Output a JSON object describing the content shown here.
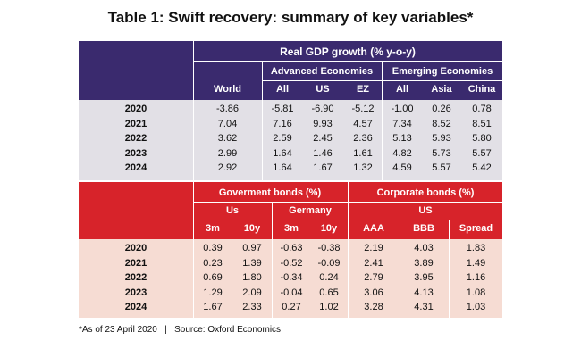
{
  "title": "Table 1: Swift recovery: summary of key variables*",
  "gdp": {
    "header": "Real GDP growth (% y-o-y)",
    "group_advanced": "Advanced Economies",
    "group_emerging": "Emerging Economies",
    "columns": [
      "World",
      "All",
      "US",
      "EZ",
      "All",
      "Asia",
      "China"
    ],
    "rows": [
      {
        "year": "2020",
        "values": [
          "-3.86",
          "-5.81",
          "-6.90",
          "-5.12",
          "-1.00",
          "0.26",
          "0.78"
        ]
      },
      {
        "year": "2021",
        "values": [
          "7.04",
          "7.16",
          "9.93",
          "4.57",
          "7.34",
          "8.52",
          "8.51"
        ]
      },
      {
        "year": "2022",
        "values": [
          "3.62",
          "2.59",
          "2.45",
          "2.36",
          "5.13",
          "5.93",
          "5.80"
        ]
      },
      {
        "year": "2023",
        "values": [
          "2.99",
          "1.64",
          "1.46",
          "1.61",
          "4.82",
          "5.73",
          "5.57"
        ]
      },
      {
        "year": "2024",
        "values": [
          "2.92",
          "1.64",
          "1.67",
          "1.32",
          "4.59",
          "5.57",
          "5.42"
        ]
      }
    ]
  },
  "bonds": {
    "header_gov": "Goverment bonds (%)",
    "header_corp": "Corporate bonds (%)",
    "group_us": "Us",
    "group_germany": "Germany",
    "group_corp_us": "US",
    "columns": [
      "3m",
      "10y",
      "3m",
      "10y",
      "AAA",
      "BBB",
      "Spread"
    ],
    "rows": [
      {
        "year": "2020",
        "values": [
          "0.39",
          "0.97",
          "-0.63",
          "-0.38",
          "2.19",
          "4.03",
          "1.83"
        ]
      },
      {
        "year": "2021",
        "values": [
          "0.23",
          "1.39",
          "-0.52",
          "-0.09",
          "2.41",
          "3.89",
          "1.49"
        ]
      },
      {
        "year": "2022",
        "values": [
          "0.69",
          "1.80",
          "-0.34",
          "0.24",
          "2.79",
          "3.95",
          "1.16"
        ]
      },
      {
        "year": "2023",
        "values": [
          "1.29",
          "2.09",
          "-0.04",
          "0.65",
          "3.06",
          "4.13",
          "1.08"
        ]
      },
      {
        "year": "2024",
        "values": [
          "1.67",
          "2.33",
          "0.27",
          "1.02",
          "3.28",
          "4.31",
          "1.03"
        ]
      }
    ]
  },
  "footnote": "*As of 23 April 2020   |   Source: Oxford Economics",
  "colors": {
    "gdp_header": "#3a2a6e",
    "gdp_body": "#e2e0e6",
    "bond_header": "#d7232a",
    "bond_body": "#f6dcd3"
  }
}
